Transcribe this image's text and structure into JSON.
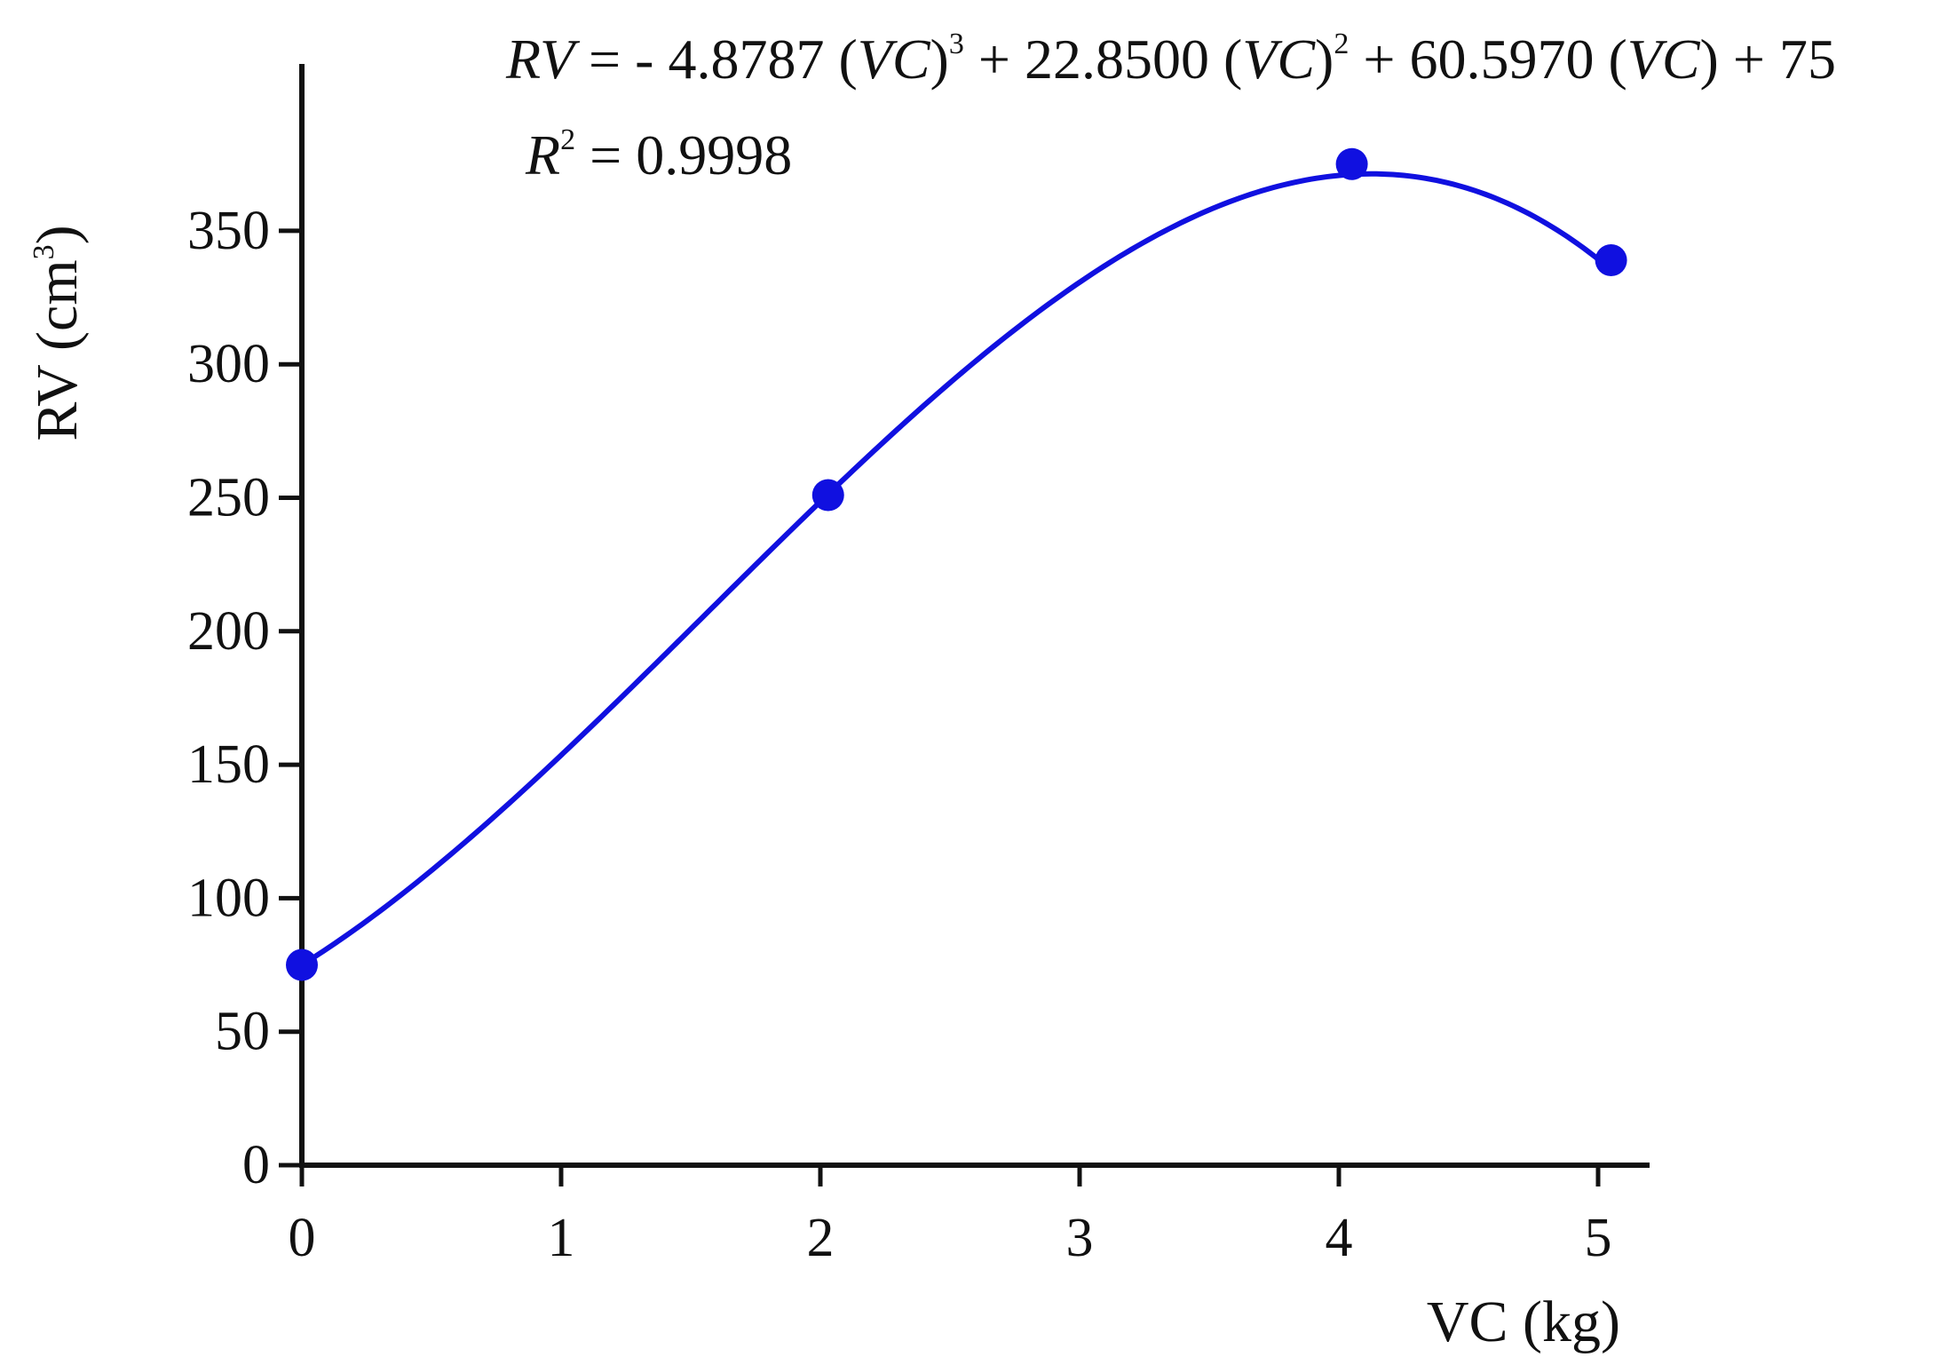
{
  "chart_data": {
    "type": "scatter",
    "title": "",
    "xlabel": "VC (kg)",
    "ylabel_main": "RV (cm",
    "ylabel_sup": "3",
    "ylabel_close": ")",
    "xlim": [
      0,
      5.15
    ],
    "ylim": [
      0,
      390
    ],
    "xticks": [
      0,
      1,
      2,
      3,
      4,
      5
    ],
    "yticks": [
      0,
      50,
      100,
      150,
      200,
      250,
      300,
      350
    ],
    "grid": false,
    "legend": "none",
    "series": [
      {
        "points": [
          {
            "x": 0,
            "y": 75
          },
          {
            "x": 2.03,
            "y": 251
          },
          {
            "x": 4.05,
            "y": 375
          },
          {
            "x": 5.05,
            "y": 339
          }
        ],
        "color": "#1010e0"
      }
    ],
    "fit_coefficients": {
      "a3": -4.8787,
      "a2": 22.85,
      "a1": 60.597,
      "a0": 75
    },
    "fit_color": "#1010e0",
    "axis_color": "#111111",
    "equation": {
      "lhs": "RV",
      "eq1": " = - 4.8787 (",
      "var": "VC",
      "close1": ")",
      "sup1": "3",
      "eq2": " + 22.8500 (",
      "close2": ")",
      "sup2": "2",
      "eq3": " + 60.5970 (",
      "close3": ") + 75"
    },
    "r2": {
      "sym": "R",
      "sup": "2",
      "value": " = 0.9998"
    }
  }
}
